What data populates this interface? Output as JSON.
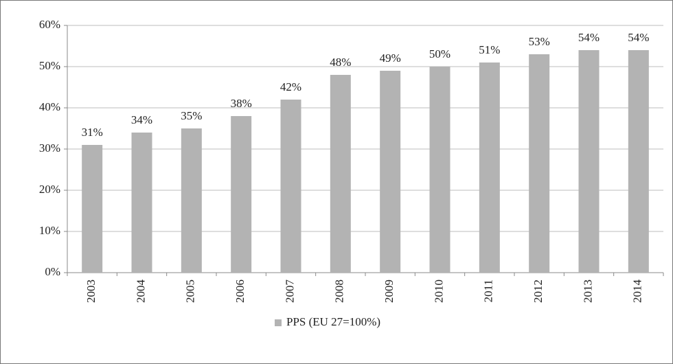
{
  "chart_data": {
    "type": "bar",
    "categories": [
      "2003",
      "2004",
      "2005",
      "2006",
      "2007",
      "2008",
      "2009",
      "2010",
      "2011",
      "2012",
      "2013",
      "2014"
    ],
    "series": [
      {
        "name": "PPS (EU 27=100%)",
        "color": "#b3b3b3",
        "values": [
          31,
          34,
          35,
          38,
          42,
          48,
          49,
          50,
          51,
          53,
          54,
          54
        ],
        "value_labels": [
          "31%",
          "34%",
          "35%",
          "38%",
          "42%",
          "48%",
          "49%",
          "50%",
          "51%",
          "53%",
          "54%",
          "54%"
        ]
      }
    ],
    "ylim": [
      0,
      60
    ],
    "yticks": [
      {
        "value": 0,
        "label": "0%"
      },
      {
        "value": 10,
        "label": "10%"
      },
      {
        "value": 20,
        "label": "20%"
      },
      {
        "value": 30,
        "label": "30%"
      },
      {
        "value": 40,
        "label": "40%"
      },
      {
        "value": 50,
        "label": "50%"
      },
      {
        "value": 60,
        "label": "60%"
      }
    ],
    "grid": true,
    "legend": "bottom"
  }
}
